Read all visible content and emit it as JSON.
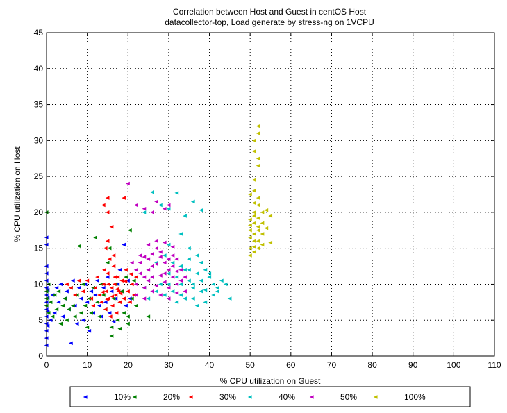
{
  "chart_data": {
    "type": "scatter",
    "title": "Correlation between Host and Guest in centOS Host",
    "subtitle": "datacollector-top, Load generate by stress-ng on 1VCPU",
    "xlabel": "% CPU utilization on Guest",
    "ylabel": "% CPU utilization on Host",
    "xlim": [
      0,
      110
    ],
    "ylim": [
      0,
      45
    ],
    "xticks": [
      0,
      10,
      20,
      30,
      40,
      50,
      60,
      70,
      80,
      90,
      100,
      110
    ],
    "yticks": [
      0,
      5,
      10,
      15,
      20,
      25,
      30,
      35,
      40,
      45
    ],
    "grid": "dotted",
    "legend_position": "bottom",
    "marker": "left-pointing-triangle",
    "series": [
      {
        "name": "10%",
        "color": "#0000ff",
        "points": [
          [
            0,
            1.5
          ],
          [
            0,
            2.5
          ],
          [
            0,
            3.5
          ],
          [
            0,
            4.5
          ],
          [
            0,
            5.5
          ],
          [
            0,
            6.5
          ],
          [
            0,
            7.5
          ],
          [
            0,
            8.5
          ],
          [
            0,
            9.5
          ],
          [
            0,
            10.5
          ],
          [
            0,
            11.5
          ],
          [
            0,
            12.5
          ],
          [
            0,
            15.5
          ],
          [
            0,
            16.5
          ],
          [
            0.3,
            4.2
          ],
          [
            0.3,
            6.2
          ],
          [
            0.3,
            8.1
          ],
          [
            0.3,
            9.2
          ],
          [
            1,
            5
          ],
          [
            1.5,
            8.5
          ],
          [
            2,
            6
          ],
          [
            2.5,
            9.5
          ],
          [
            3,
            7.5
          ],
          [
            3.5,
            10
          ],
          [
            4,
            5.5
          ],
          [
            4.5,
            8
          ],
          [
            5,
            9
          ],
          [
            5.5,
            6.5
          ],
          [
            6,
            1.8
          ],
          [
            6.5,
            10.5
          ],
          [
            7,
            7
          ],
          [
            7.5,
            4.5
          ],
          [
            8,
            9.5
          ],
          [
            8.5,
            8
          ],
          [
            9,
            5
          ],
          [
            9.5,
            10
          ],
          [
            10,
            7.5
          ],
          [
            10.5,
            3.5
          ],
          [
            11,
            9
          ],
          [
            11.5,
            6
          ],
          [
            12,
            8.5
          ],
          [
            12.5,
            10.5
          ],
          [
            13,
            7
          ],
          [
            13.5,
            5.5
          ],
          [
            14,
            9.5
          ],
          [
            14.5,
            7.5
          ],
          [
            15,
            11
          ],
          [
            15.5,
            6
          ],
          [
            16,
            9
          ],
          [
            16.5,
            4.8
          ],
          [
            17,
            8
          ],
          [
            17.5,
            10
          ],
          [
            18,
            12
          ],
          [
            18.5,
            9
          ],
          [
            19,
            15.5
          ],
          [
            19.5,
            7
          ],
          [
            20,
            10.5
          ],
          [
            20.5,
            8
          ]
        ]
      },
      {
        "name": "20%",
        "color": "#008000",
        "points": [
          [
            0,
            20
          ],
          [
            0,
            7
          ],
          [
            0,
            8
          ],
          [
            0,
            9
          ],
          [
            0.5,
            6
          ],
          [
            0.5,
            10
          ],
          [
            1,
            7.5
          ],
          [
            1.5,
            5.5
          ],
          [
            2,
            8.5
          ],
          [
            2.5,
            6.5
          ],
          [
            3,
            9
          ],
          [
            3.5,
            4.5
          ],
          [
            4,
            7
          ],
          [
            4.5,
            8
          ],
          [
            5,
            5
          ],
          [
            5.5,
            6.5
          ],
          [
            6,
            9.5
          ],
          [
            6.5,
            7
          ],
          [
            7,
            5.5
          ],
          [
            7.5,
            8.5
          ],
          [
            8,
            15.3
          ],
          [
            8.5,
            6
          ],
          [
            9,
            10
          ],
          [
            9.5,
            7
          ],
          [
            10,
            4
          ],
          [
            10.5,
            8
          ],
          [
            11,
            6
          ],
          [
            11.5,
            9.5
          ],
          [
            12,
            16.5
          ],
          [
            12.5,
            7.5
          ],
          [
            13,
            5.5
          ],
          [
            13.5,
            10
          ],
          [
            14,
            8.5
          ],
          [
            14.5,
            6.5
          ],
          [
            15,
            13
          ],
          [
            15.5,
            15
          ],
          [
            16,
            4
          ],
          [
            16.5,
            8
          ],
          [
            17,
            10
          ],
          [
            17.5,
            5
          ],
          [
            18,
            7.5
          ],
          [
            18.5,
            9
          ],
          [
            19,
            6
          ],
          [
            19.5,
            11
          ],
          [
            20,
            4.5
          ],
          [
            20.5,
            17.5
          ],
          [
            21,
            8
          ],
          [
            21.5,
            10.5
          ],
          [
            22,
            7
          ],
          [
            20,
            5.5
          ],
          [
            18,
            3.8
          ],
          [
            16,
            2.8
          ],
          [
            25,
            5.5
          ]
        ]
      },
      {
        "name": "30%",
        "color": "#ff0000",
        "points": [
          [
            5,
            10
          ],
          [
            6,
            9.5
          ],
          [
            7,
            8.5
          ],
          [
            8,
            10.5
          ],
          [
            9,
            9
          ],
          [
            10,
            10.5
          ],
          [
            11,
            8
          ],
          [
            11.5,
            7
          ],
          [
            12,
            9.5
          ],
          [
            12.5,
            11
          ],
          [
            13,
            8.5
          ],
          [
            13.5,
            7.5
          ],
          [
            14,
            10
          ],
          [
            14.2,
            12
          ],
          [
            14.5,
            6.5
          ],
          [
            14.7,
            9
          ],
          [
            15,
            11.5
          ],
          [
            15.2,
            8
          ],
          [
            15.5,
            13.5
          ],
          [
            15.7,
            5.5
          ],
          [
            16,
            9.5
          ],
          [
            16.2,
            7
          ],
          [
            16.5,
            12.5
          ],
          [
            16.7,
            10
          ],
          [
            17,
            8.5
          ],
          [
            17.2,
            6
          ],
          [
            17.5,
            11
          ],
          [
            17.7,
            9
          ],
          [
            18,
            7.5
          ],
          [
            18.5,
            10.5
          ],
          [
            19,
            8
          ],
          [
            19.5,
            12
          ],
          [
            20,
            9
          ],
          [
            20.5,
            7.5
          ],
          [
            21,
            10
          ],
          [
            21.5,
            8.5
          ],
          [
            22,
            11
          ],
          [
            14,
            21
          ],
          [
            15,
            22
          ],
          [
            19,
            22
          ],
          [
            15,
            20
          ],
          [
            14.5,
            15
          ],
          [
            15,
            16
          ],
          [
            16,
            18
          ],
          [
            16.5,
            14
          ],
          [
            15.2,
            10
          ],
          [
            16.8,
            11
          ],
          [
            17.3,
            9.3
          ],
          [
            18.2,
            8.7
          ],
          [
            13.8,
            8.9
          ],
          [
            14.9,
            7.9
          ],
          [
            16.1,
            8.3
          ],
          [
            19.4,
            10.4
          ],
          [
            20.8,
            11.4
          ]
        ]
      },
      {
        "name": "40%",
        "color": "#00c0c0",
        "points": [
          [
            24,
            20
          ],
          [
            26,
            22.8
          ],
          [
            28,
            21
          ],
          [
            30,
            20.5
          ],
          [
            32,
            22.7
          ],
          [
            34,
            19.5
          ],
          [
            36,
            21.5
          ],
          [
            38,
            20.3
          ],
          [
            33,
            17
          ],
          [
            35,
            15
          ],
          [
            37,
            14
          ],
          [
            38,
            13
          ],
          [
            39,
            12
          ],
          [
            40,
            11
          ],
          [
            41,
            10
          ],
          [
            42,
            9
          ],
          [
            43,
            10.5
          ],
          [
            44,
            10
          ],
          [
            45,
            8
          ],
          [
            36,
            8
          ],
          [
            37,
            7
          ],
          [
            38,
            9
          ],
          [
            39,
            7.5
          ],
          [
            40,
            11.5
          ],
          [
            41,
            8.5
          ],
          [
            42,
            9.5
          ],
          [
            30,
            10
          ],
          [
            31,
            9
          ],
          [
            32,
            11
          ],
          [
            33,
            8.5
          ],
          [
            34,
            12
          ],
          [
            35,
            10.5
          ],
          [
            36,
            9.5
          ],
          [
            37,
            11.5
          ],
          [
            38,
            10.5
          ],
          [
            39,
            9.2
          ],
          [
            29,
            8.5
          ],
          [
            28,
            10
          ],
          [
            27,
            9
          ],
          [
            26,
            11
          ],
          [
            25,
            8
          ],
          [
            24,
            9.5
          ],
          [
            31,
            13
          ],
          [
            33,
            12.5
          ],
          [
            35,
            13.5
          ],
          [
            29,
            14
          ],
          [
            27,
            13
          ],
          [
            30,
            15.5
          ],
          [
            32,
            7.5
          ],
          [
            34,
            8
          ],
          [
            36,
            10
          ],
          [
            33,
            10
          ],
          [
            35,
            12
          ],
          [
            30,
            11.5
          ]
        ]
      },
      {
        "name": "50%",
        "color": "#c000c0",
        "points": [
          [
            20,
            24
          ],
          [
            22,
            21
          ],
          [
            24,
            20.5
          ],
          [
            26,
            20
          ],
          [
            27,
            21.5
          ],
          [
            29,
            20.5
          ],
          [
            30,
            21
          ],
          [
            21,
            13
          ],
          [
            22,
            12
          ],
          [
            23,
            14
          ],
          [
            24,
            11
          ],
          [
            25,
            13.5
          ],
          [
            26,
            12.5
          ],
          [
            27,
            15
          ],
          [
            28,
            14.5
          ],
          [
            29,
            13
          ],
          [
            30,
            12
          ],
          [
            31,
            14
          ],
          [
            32,
            13.5
          ],
          [
            33,
            12
          ],
          [
            34,
            11
          ],
          [
            22,
            10
          ],
          [
            23,
            11.5
          ],
          [
            24,
            9.5
          ],
          [
            25,
            10.5
          ],
          [
            26,
            11
          ],
          [
            27,
            9.8
          ],
          [
            28,
            11.2
          ],
          [
            29,
            10.3
          ],
          [
            30,
            9.5
          ],
          [
            31,
            11
          ],
          [
            32,
            10
          ],
          [
            33,
            10.5
          ],
          [
            34,
            9
          ],
          [
            22,
            8.5
          ],
          [
            24,
            8
          ],
          [
            26,
            9
          ],
          [
            28,
            8.5
          ],
          [
            30,
            8
          ],
          [
            32,
            8.8
          ],
          [
            25,
            15.5
          ],
          [
            27,
            16
          ],
          [
            29,
            15.8
          ],
          [
            31,
            15.2
          ],
          [
            23,
            13
          ],
          [
            25,
            12
          ],
          [
            27,
            12.8
          ],
          [
            29,
            11.5
          ],
          [
            31,
            12.5
          ],
          [
            28,
            13.8
          ],
          [
            26,
            14.2
          ],
          [
            24,
            13.8
          ],
          [
            30,
            13.5
          ],
          [
            32,
            11.8
          ]
        ]
      },
      {
        "name": "100%",
        "color": "#c0c000",
        "points": [
          [
            52,
            32
          ],
          [
            52,
            31
          ],
          [
            51,
            30
          ],
          [
            51,
            28.5
          ],
          [
            52,
            27.5
          ],
          [
            52,
            26.5
          ],
          [
            51,
            24.5
          ],
          [
            51,
            23
          ],
          [
            52,
            22
          ],
          [
            50,
            22.5
          ],
          [
            52,
            21
          ],
          [
            51,
            20
          ],
          [
            53,
            20
          ],
          [
            54,
            20.3
          ],
          [
            55,
            19.5
          ],
          [
            50,
            19
          ],
          [
            51,
            18.5
          ],
          [
            52,
            18
          ],
          [
            53,
            18.5
          ],
          [
            50,
            17.5
          ],
          [
            51,
            17
          ],
          [
            52,
            17.5
          ],
          [
            50,
            16.5
          ],
          [
            51,
            16
          ],
          [
            52,
            16
          ],
          [
            53,
            15.5
          ],
          [
            55,
            15.8
          ],
          [
            50,
            15
          ],
          [
            51,
            14.5
          ],
          [
            50,
            14
          ],
          [
            51,
            15.2
          ],
          [
            52,
            19.2
          ],
          [
            51,
            19.5
          ],
          [
            50,
            18.2
          ],
          [
            52,
            15
          ],
          [
            53,
            17
          ],
          [
            54,
            17.8
          ],
          [
            51,
            21.3
          ]
        ]
      }
    ]
  }
}
